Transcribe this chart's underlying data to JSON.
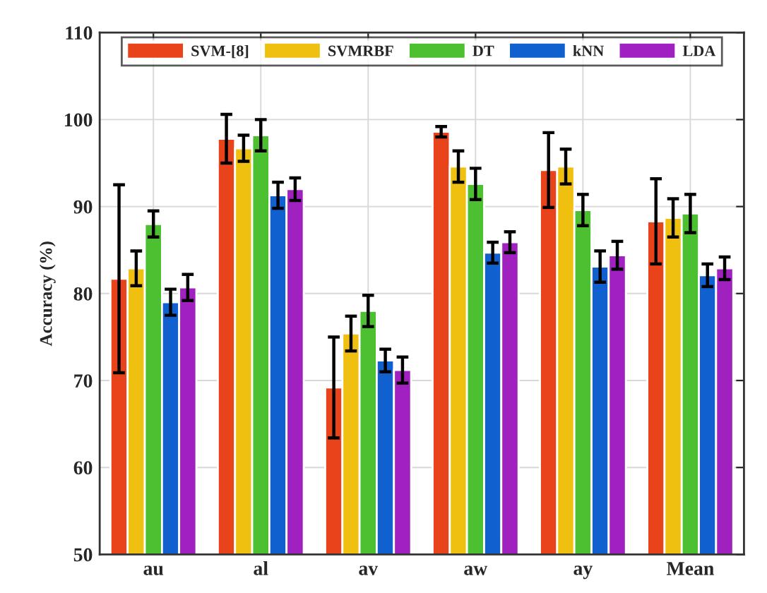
{
  "chart_data": {
    "type": "bar",
    "ylabel": "Accuracy (%)",
    "categories": [
      "au",
      "al",
      "av",
      "aw",
      "ay",
      "Mean"
    ],
    "series": [
      {
        "name": "SVM-[8]",
        "color": "#e8431a",
        "values": [
          81.7,
          97.8,
          69.2,
          98.6,
          94.2,
          88.3
        ],
        "errors": [
          10.8,
          2.8,
          5.8,
          0.6,
          4.3,
          4.9
        ]
      },
      {
        "name": "SVMRBF",
        "color": "#f0c010",
        "values": [
          82.9,
          96.7,
          75.4,
          94.6,
          94.6,
          88.7
        ],
        "errors": [
          2.0,
          1.5,
          2.0,
          1.8,
          2.0,
          2.2
        ]
      },
      {
        "name": "DT",
        "color": "#4cc030",
        "values": [
          88.0,
          98.2,
          78.0,
          92.6,
          89.6,
          89.2
        ],
        "errors": [
          1.5,
          1.8,
          1.8,
          1.8,
          1.8,
          2.2
        ]
      },
      {
        "name": "kNN",
        "color": "#1060d0",
        "values": [
          79.0,
          91.3,
          72.3,
          84.7,
          83.1,
          82.1
        ],
        "errors": [
          1.5,
          1.5,
          1.3,
          1.2,
          1.8,
          1.3
        ]
      },
      {
        "name": "LDA",
        "color": "#a020c0",
        "values": [
          80.7,
          92.0,
          71.2,
          85.9,
          84.4,
          82.9
        ],
        "errors": [
          1.5,
          1.3,
          1.5,
          1.2,
          1.6,
          1.3
        ]
      }
    ],
    "ylim": [
      50,
      110
    ],
    "yticks": [
      50,
      60,
      70,
      80,
      90,
      100,
      110
    ],
    "grid": true,
    "legend": "top"
  }
}
